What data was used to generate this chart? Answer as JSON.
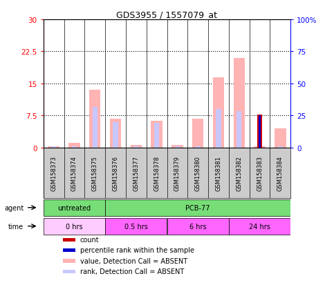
{
  "title": "GDS3955 / 1557079_at",
  "samples": [
    "GSM158373",
    "GSM158374",
    "GSM158375",
    "GSM158376",
    "GSM158377",
    "GSM158378",
    "GSM158379",
    "GSM158380",
    "GSM158381",
    "GSM158382",
    "GSM158383",
    "GSM158384"
  ],
  "value_absent": [
    0.3,
    1.1,
    13.5,
    6.8,
    0.7,
    6.2,
    0.7,
    6.8,
    16.5,
    21.0,
    0.3,
    4.5
  ],
  "rank_absent": [
    0.3,
    0.3,
    9.5,
    6.0,
    0.3,
    5.8,
    0.3,
    0.3,
    9.0,
    8.5,
    7.5,
    0.3
  ],
  "count": [
    0,
    0,
    0,
    0,
    0,
    0,
    0,
    0,
    0,
    0,
    7.8,
    0
  ],
  "percentile_rank": [
    0,
    0,
    0,
    0,
    0,
    0,
    0,
    0,
    0,
    0,
    7.5,
    0
  ],
  "color_value_absent": "#FFB3B3",
  "color_rank_absent": "#C8C8FF",
  "color_count": "#CC0000",
  "color_percentile": "#0000CC",
  "ylim_left": [
    0,
    30
  ],
  "ylim_right": [
    0,
    100
  ],
  "yticks_left": [
    0,
    7.5,
    15,
    22.5,
    30
  ],
  "yticks_right": [
    0,
    25,
    50,
    75,
    100
  ],
  "ytick_labels_left": [
    "0",
    "7.5",
    "15",
    "22.5",
    "30"
  ],
  "ytick_labels_right": [
    "0",
    "25",
    "50",
    "75",
    "100%"
  ],
  "agent_groups": [
    {
      "label": "untreated",
      "start": 0,
      "end": 3,
      "color": "#77DD77"
    },
    {
      "label": "PCB-77",
      "start": 3,
      "end": 12,
      "color": "#77DD77"
    }
  ],
  "time_colors": [
    "#FFCCFF",
    "#FF66FF",
    "#FF66FF",
    "#FF66FF"
  ],
  "time_groups": [
    {
      "label": "0 hrs",
      "start": 0,
      "end": 3
    },
    {
      "label": "0.5 hrs",
      "start": 3,
      "end": 6
    },
    {
      "label": "6 hrs",
      "start": 6,
      "end": 9
    },
    {
      "label": "24 hrs",
      "start": 9,
      "end": 12
    }
  ],
  "legend_items": [
    {
      "color": "#CC0000",
      "label": "count"
    },
    {
      "color": "#0000CC",
      "label": "percentile rank within the sample"
    },
    {
      "color": "#FFB3B3",
      "label": "value, Detection Call = ABSENT"
    },
    {
      "color": "#C8C8FF",
      "label": "rank, Detection Call = ABSENT"
    }
  ],
  "bar_width": 0.25,
  "background_color": "#FFFFFF",
  "plot_bg": "#FFFFFF",
  "sample_box_color": "#CCCCCC",
  "n_samples": 12
}
